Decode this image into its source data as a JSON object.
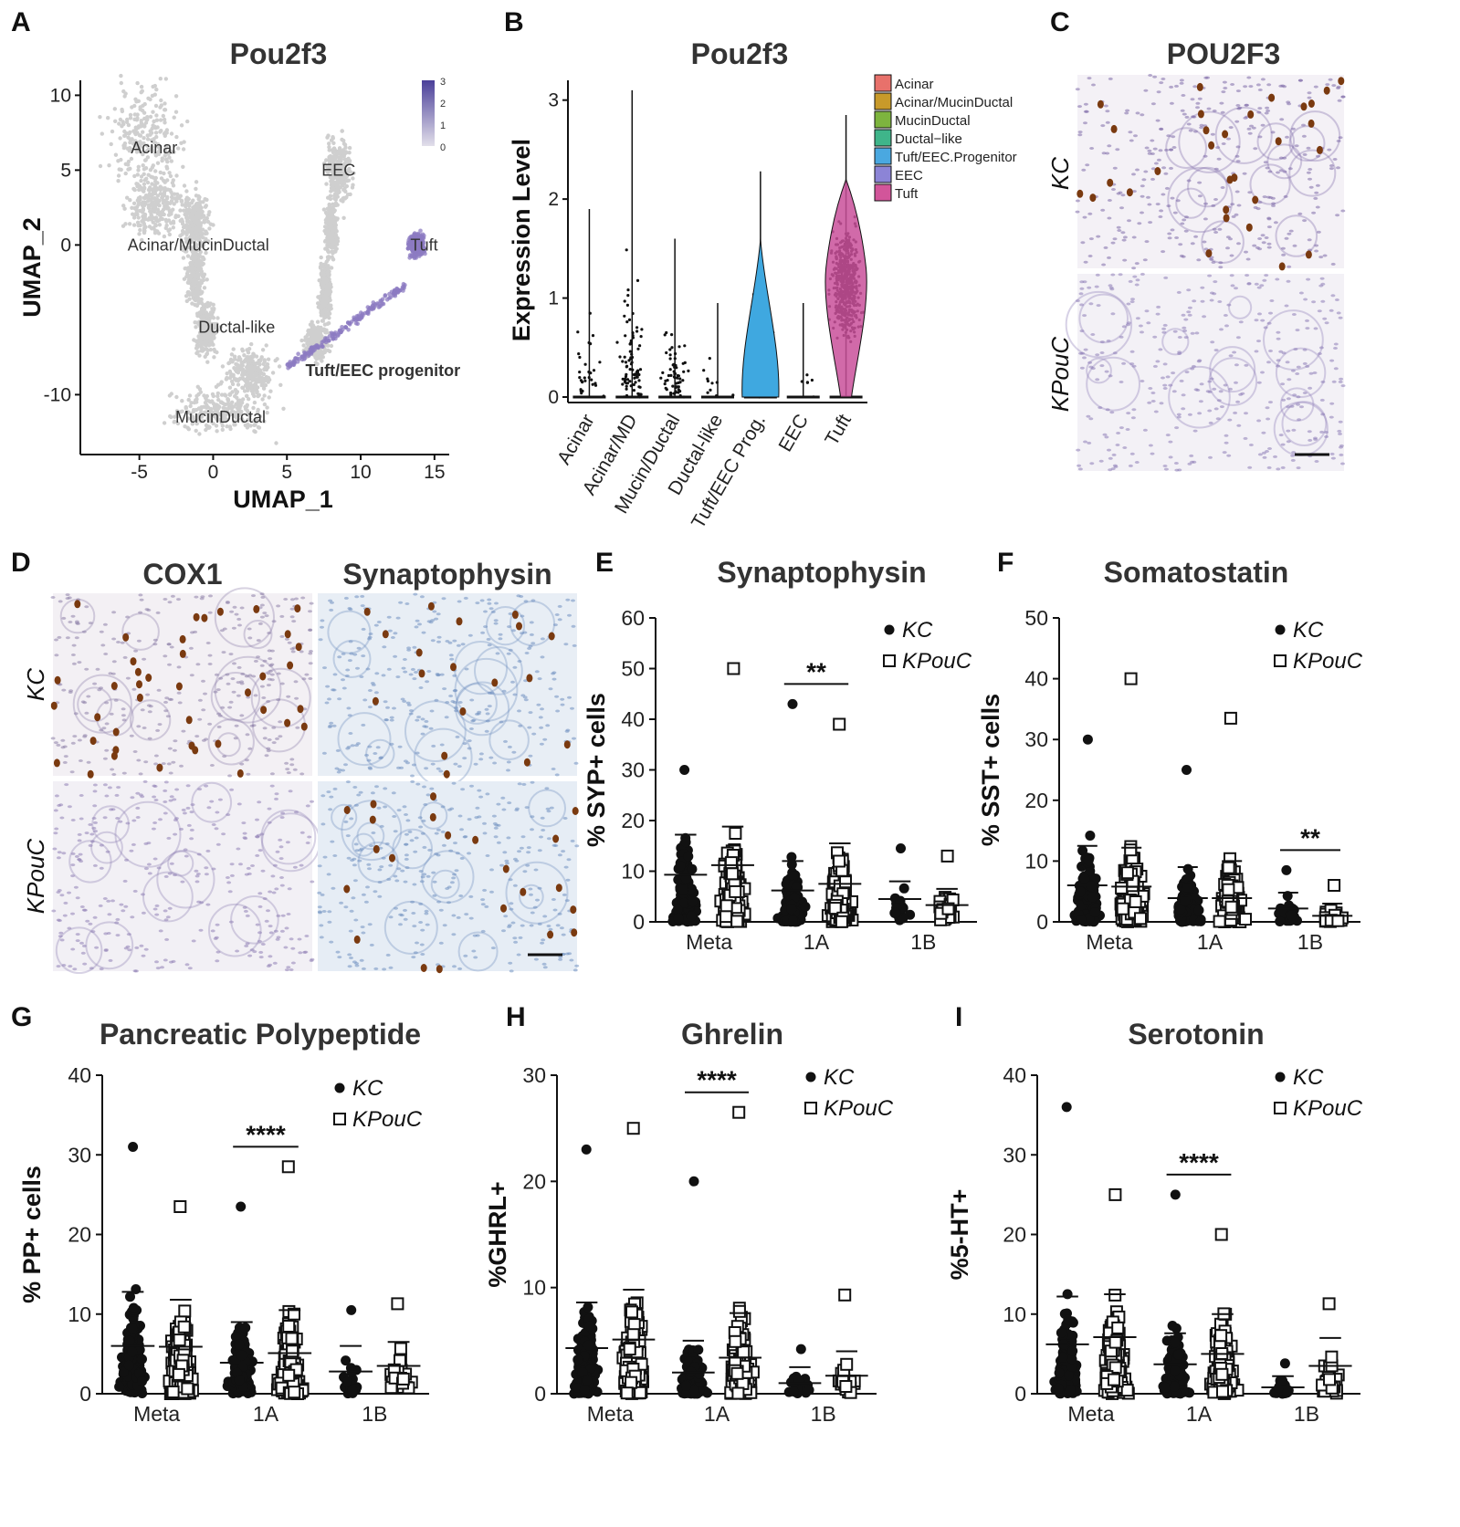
{
  "panel_labels": [
    "A",
    "B",
    "C",
    "D",
    "E",
    "F",
    "G",
    "H",
    "I"
  ],
  "colors": {
    "ink": "#111111",
    "grey_cells": "#cfcfcf",
    "tuft_purple": "#8c7bc2",
    "violin_prog": "#3fa8e0",
    "violin_tuft": "#c9509a",
    "dab_brown": "#7a3a10",
    "hema_blue": "#8aa6cc"
  },
  "histology": {
    "C": {
      "title": "POU2F3",
      "rows": [
        "KC",
        "KPouC"
      ]
    },
    "D": {
      "titles": [
        "COX1",
        "Synaptophysin"
      ],
      "rows": [
        "KC",
        "KPouC"
      ]
    }
  },
  "chart_data": [
    {
      "id": "A",
      "type": "scatter",
      "title": "Pou2f3",
      "xlabel": "UMAP_1",
      "ylabel": "UMAP_2",
      "xlim": [
        -9,
        16
      ],
      "ylim": [
        -14,
        11
      ],
      "xticks": [
        "-5",
        "0",
        "5",
        "10",
        "15"
      ],
      "yticks": [
        "10",
        "5",
        "0",
        "-10"
      ],
      "clusters": [
        {
          "name": "Acinar",
          "center": [
            -4,
            6.5
          ]
        },
        {
          "name": "Acinar/MucinDuctal",
          "center": [
            -1,
            0
          ]
        },
        {
          "name": "EEC",
          "center": [
            8.5,
            5
          ]
        },
        {
          "name": "Tuft",
          "center": [
            14.3,
            0
          ]
        },
        {
          "name": "Ductal-like",
          "center": [
            1.6,
            -5.5
          ]
        },
        {
          "name": "Tuft/EEC progenitor",
          "center": [
            11.5,
            -8.4
          ]
        },
        {
          "name": "MucinDuctal",
          "center": [
            0.5,
            -11.5
          ]
        }
      ],
      "colorbar": {
        "min": 0,
        "max": 3,
        "ticks": [
          "3",
          "2",
          "1",
          "0"
        ]
      }
    },
    {
      "id": "B",
      "type": "violin",
      "title": "Pou2f3",
      "ylabel": "Expression Level",
      "ylim": [
        0,
        3.2
      ],
      "yticks": [
        "0",
        "1",
        "2",
        "3"
      ],
      "categories": [
        "Acinar",
        "Acinar/MD",
        "Mucin/Ductal",
        "Ductal-like",
        "Tuft/EEC Prog.",
        "EEC",
        "Tuft"
      ],
      "max_values": [
        1.9,
        3.1,
        1.6,
        0.95,
        2.28,
        0.95,
        2.85
      ],
      "legend": [
        {
          "name": "Acinar",
          "color": "#e8716b"
        },
        {
          "name": "Acinar/MucinDuctal",
          "color": "#c89a2a"
        },
        {
          "name": "MucinDuctal",
          "color": "#7db43e"
        },
        {
          "name": "Ductal−like",
          "color": "#3fb58a"
        },
        {
          "name": "Tuft/EEC.Progenitor",
          "color": "#4aa8e0"
        },
        {
          "name": "EEC",
          "color": "#8c84d6"
        },
        {
          "name": "Tuft",
          "color": "#d2559a"
        }
      ]
    },
    {
      "id": "E",
      "type": "scatter",
      "title": "Synaptophysin",
      "ylabel": "% SYP+ cells",
      "ylim": [
        0,
        60
      ],
      "yticks": [
        "0",
        "10",
        "20",
        "30",
        "40",
        "50",
        "60"
      ],
      "categories": [
        "Meta",
        "1A",
        "1B"
      ],
      "series": [
        {
          "name": "KC",
          "mean": [
            9.3,
            6.2,
            4.5
          ],
          "sd_upper": [
            17.2,
            12.0,
            8.0
          ],
          "max": [
            30,
            43,
            14.5
          ]
        },
        {
          "name": "KPouC",
          "mean": [
            11.2,
            7.5,
            3.3
          ],
          "sd_upper": [
            18.8,
            15.5,
            6.5
          ],
          "max": [
            50,
            39,
            13
          ]
        }
      ],
      "significance": [
        {
          "category": "1A",
          "label": "**"
        }
      ]
    },
    {
      "id": "F",
      "type": "scatter",
      "title": "Somatostatin",
      "ylabel": "% SST+ cells",
      "ylim": [
        0,
        50
      ],
      "yticks": [
        "0",
        "10",
        "20",
        "30",
        "40",
        "50"
      ],
      "categories": [
        "Meta",
        "1A",
        "1B"
      ],
      "series": [
        {
          "name": "KC",
          "mean": [
            6.0,
            3.9,
            2.2
          ],
          "sd_upper": [
            12.5,
            9.0,
            4.8
          ],
          "max": [
            30,
            25,
            8.5
          ]
        },
        {
          "name": "KPouC",
          "mean": [
            5.8,
            3.9,
            1.0
          ],
          "sd_upper": [
            12.2,
            10.0,
            3.0
          ],
          "max": [
            40,
            33.5,
            6
          ]
        }
      ],
      "significance": [
        {
          "category": "1B",
          "label": "**"
        }
      ]
    },
    {
      "id": "G",
      "type": "scatter",
      "title": "Pancreatic Polypeptide",
      "ylabel": "% PP+ cells",
      "ylim": [
        0,
        40
      ],
      "yticks": [
        "0",
        "10",
        "20",
        "30",
        "40"
      ],
      "categories": [
        "Meta",
        "1A",
        "1B"
      ],
      "series": [
        {
          "name": "KC",
          "mean": [
            6.0,
            3.9,
            2.8
          ],
          "sd_upper": [
            12.8,
            9.0,
            6.0
          ],
          "max": [
            31,
            23.5,
            10.5
          ]
        },
        {
          "name": "KPouC",
          "mean": [
            5.9,
            5.1,
            3.5
          ],
          "sd_upper": [
            11.8,
            10.5,
            6.5
          ],
          "max": [
            23.5,
            28.5,
            11.3
          ]
        }
      ],
      "significance": [
        {
          "category": "1A",
          "label": "****"
        }
      ]
    },
    {
      "id": "H",
      "type": "scatter",
      "title": "Ghrelin",
      "ylabel": "%GHRL+",
      "ylim": [
        0,
        30
      ],
      "yticks": [
        "0",
        "10",
        "20",
        "30"
      ],
      "categories": [
        "Meta",
        "1A",
        "1B"
      ],
      "series": [
        {
          "name": "KC",
          "mean": [
            4.3,
            2.0,
            1.0
          ],
          "sd_upper": [
            8.6,
            5.0,
            2.5
          ],
          "max": [
            23,
            20,
            4.2
          ]
        },
        {
          "name": "KPouC",
          "mean": [
            5.1,
            3.4,
            1.7
          ],
          "sd_upper": [
            9.8,
            7.6,
            4.0
          ],
          "max": [
            25,
            26.5,
            9.3
          ]
        }
      ],
      "significance": [
        {
          "category": "1A",
          "label": "****"
        }
      ]
    },
    {
      "id": "I",
      "type": "scatter",
      "title": "Serotonin",
      "ylabel": "%5-HT+",
      "ylim": [
        0,
        40
      ],
      "yticks": [
        "0",
        "10",
        "20",
        "30",
        "40"
      ],
      "categories": [
        "Meta",
        "1A",
        "1B"
      ],
      "series": [
        {
          "name": "KC",
          "mean": [
            6.2,
            3.7,
            0.8
          ],
          "sd_upper": [
            12.2,
            7.6,
            2.2
          ],
          "max": [
            36,
            25,
            3.8
          ]
        },
        {
          "name": "KPouC",
          "mean": [
            7.1,
            5.0,
            3.5
          ],
          "sd_upper": [
            12.5,
            10.0,
            7.0
          ],
          "max": [
            25,
            20,
            11.3
          ]
        }
      ],
      "significance": [
        {
          "category": "1A",
          "label": "****"
        }
      ]
    }
  ]
}
